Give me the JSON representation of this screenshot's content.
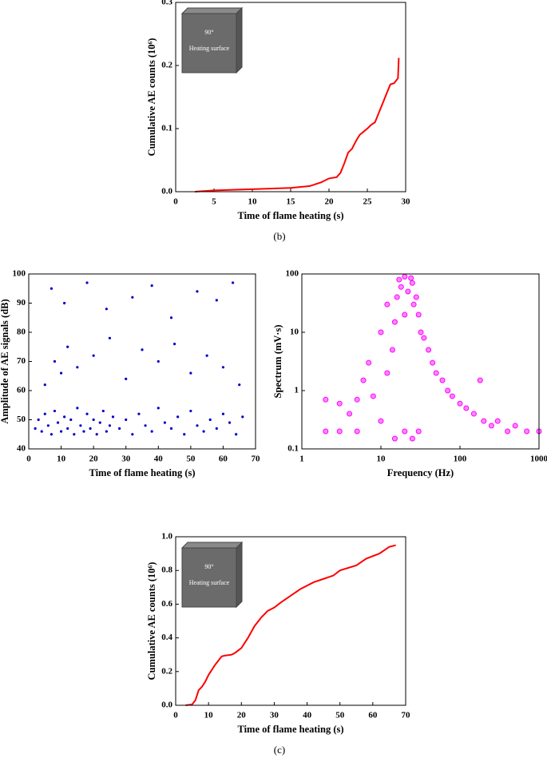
{
  "chart_data": [
    {
      "type": "line",
      "caption": "(b)",
      "x_label": "Time of flame heating (s)",
      "y_label": "Cumulative AE counts (10⁶)",
      "inset": {
        "angle": "90°",
        "label": "Heating surface"
      },
      "color": "#ff0000",
      "x": [
        2.5,
        5,
        10,
        15,
        17.5,
        19,
        20,
        21,
        21.5,
        22,
        22.5,
        23,
        23.5,
        24,
        24.5,
        25,
        25.5,
        26,
        26.5,
        27,
        27.5,
        28,
        28.5,
        29,
        29.1
      ],
      "values": [
        0,
        0.002,
        0.004,
        0.006,
        0.009,
        0.015,
        0.021,
        0.023,
        0.03,
        0.045,
        0.062,
        0.068,
        0.08,
        0.09,
        0.095,
        0.1,
        0.106,
        0.11,
        0.125,
        0.14,
        0.155,
        0.17,
        0.172,
        0.18,
        0.212
      ],
      "xlim": [
        0,
        30
      ],
      "xticks": [
        0,
        5,
        10,
        15,
        20,
        25,
        30
      ],
      "ylim": [
        0,
        0.3
      ],
      "yticks": [
        {
          "value": 0,
          "label": "0.0"
        },
        0.1,
        0.2,
        0.3
      ]
    },
    {
      "type": "scatter",
      "x_label": "Time of flame heating (s)",
      "y_label": "Amplitude of AE signals (dB)",
      "color": "#0000cc",
      "x": [
        2,
        3,
        4,
        5,
        6,
        7,
        8,
        9,
        10,
        11,
        12,
        13,
        14,
        15,
        16,
        17,
        18,
        19,
        20,
        21,
        22,
        23,
        24,
        25,
        26,
        28,
        30,
        32,
        34,
        36,
        38,
        40,
        42,
        44,
        46,
        48,
        50,
        52,
        54,
        56,
        58,
        60,
        62,
        64,
        66,
        5,
        8,
        10,
        12,
        15,
        20,
        25,
        30,
        35,
        40,
        45,
        50,
        55,
        60,
        65,
        7,
        11,
        18,
        24,
        32,
        38,
        44,
        52,
        58,
        63
      ],
      "values": [
        47,
        50,
        46,
        52,
        48,
        45,
        53,
        49,
        46,
        51,
        47,
        50,
        45,
        54,
        48,
        46,
        52,
        47,
        50,
        45,
        49,
        53,
        46,
        48,
        51,
        47,
        50,
        45,
        52,
        48,
        46,
        54,
        49,
        47,
        51,
        45,
        53,
        48,
        46,
        50,
        47,
        52,
        49,
        45,
        51,
        62,
        70,
        66,
        75,
        68,
        72,
        78,
        64,
        74,
        70,
        76,
        66,
        72,
        68,
        62,
        95,
        90,
        97,
        88,
        92,
        96,
        85,
        94,
        91,
        97
      ],
      "xlim": [
        0,
        70
      ],
      "xticks": [
        0,
        10,
        20,
        30,
        40,
        50,
        60,
        70
      ],
      "ylim": [
        40,
        100
      ],
      "yticks": [
        40,
        50,
        60,
        70,
        80,
        90,
        100
      ]
    },
    {
      "type": "scatter",
      "x_label": "Frequency (Hz)",
      "y_label": "Spectrum (mV·s)",
      "color": "#ff00ff",
      "log_x": true,
      "log_y": true,
      "x": [
        2,
        2,
        3,
        3,
        4,
        5,
        5,
        6,
        7,
        8,
        10,
        10,
        12,
        12,
        14,
        15,
        16,
        17,
        18,
        20,
        20,
        22,
        24,
        25,
        26,
        28,
        30,
        32,
        35,
        40,
        45,
        50,
        60,
        70,
        80,
        100,
        120,
        150,
        200,
        250,
        300,
        400,
        500,
        700,
        1000,
        15,
        20,
        25,
        30,
        180
      ],
      "values": [
        0.2,
        0.7,
        0.2,
        0.6,
        0.4,
        0.2,
        0.7,
        1.5,
        3,
        0.8,
        0.3,
        10,
        2,
        30,
        5,
        15,
        40,
        80,
        60,
        90,
        20,
        50,
        85,
        70,
        30,
        40,
        20,
        10,
        8,
        5,
        3,
        2,
        1.5,
        1,
        0.8,
        0.6,
        0.5,
        0.4,
        0.3,
        0.25,
        0.3,
        0.2,
        0.25,
        0.2,
        0.2,
        0.15,
        0.2,
        0.15,
        0.2,
        1.5
      ],
      "xlim": [
        1,
        1000
      ],
      "xticks": [
        1,
        10,
        100,
        1000
      ],
      "ylim": [
        0.1,
        100
      ],
      "yticks": [
        0.1,
        1,
        10,
        100
      ]
    },
    {
      "type": "line",
      "caption": "(c)",
      "x_label": "Time of flame heating (s)",
      "y_label": "Cumulative AE counts (10⁶)",
      "inset": {
        "angle": "90°",
        "label": "Heating surface"
      },
      "color": "#ff0000",
      "x": [
        3,
        5,
        6,
        7,
        8,
        9,
        10,
        12,
        14,
        15,
        17,
        18,
        20,
        22,
        24,
        26,
        28,
        30,
        32,
        35,
        38,
        42,
        45,
        48,
        50,
        55,
        58,
        62,
        65,
        67
      ],
      "values": [
        0,
        0.005,
        0.03,
        0.09,
        0.11,
        0.14,
        0.18,
        0.24,
        0.29,
        0.295,
        0.3,
        0.31,
        0.34,
        0.4,
        0.47,
        0.52,
        0.56,
        0.58,
        0.61,
        0.65,
        0.69,
        0.73,
        0.75,
        0.77,
        0.8,
        0.83,
        0.87,
        0.9,
        0.94,
        0.95
      ],
      "xlim": [
        0,
        70
      ],
      "xticks": [
        0,
        10,
        20,
        30,
        40,
        50,
        60,
        70
      ],
      "ylim": [
        0,
        1
      ],
      "yticks": [
        {
          "value": 0,
          "label": "0.0"
        },
        0.2,
        0.4,
        0.6,
        0.8,
        {
          "value": 1,
          "label": "1.0"
        }
      ]
    }
  ]
}
